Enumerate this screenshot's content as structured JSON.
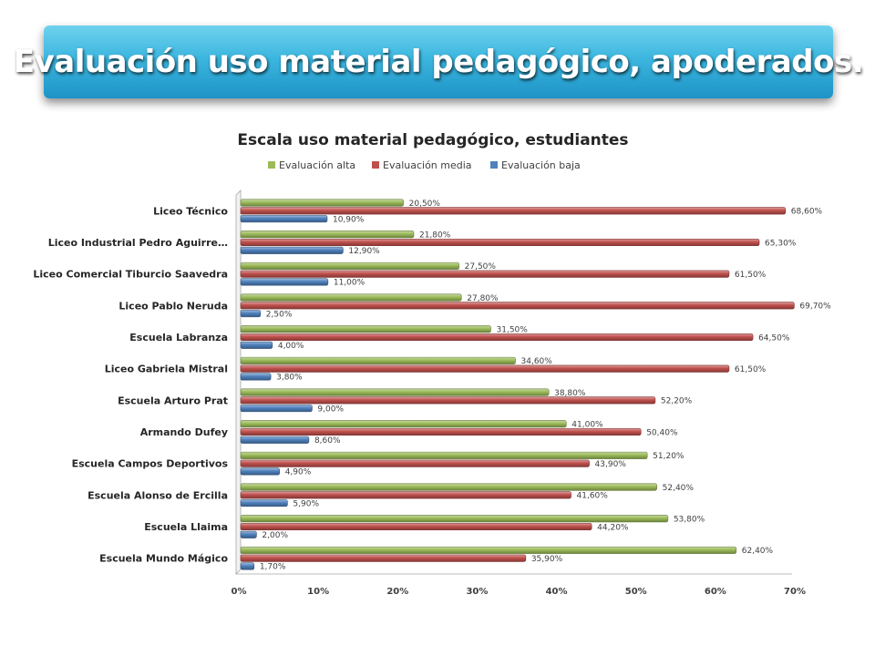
{
  "slide": {
    "title": "Evaluación uso material pedagógico, apoderados."
  },
  "chart_data": {
    "type": "bar",
    "orientation": "horizontal",
    "title": "Escala uso material pedagógico, estudiantes",
    "legend_position": "top",
    "xlim": [
      0,
      70
    ],
    "x_ticks": [
      "0%",
      "10%",
      "20%",
      "30%",
      "40%",
      "50%",
      "60%",
      "70%"
    ],
    "grid": false,
    "categories": [
      "Liceo Técnico",
      "Liceo Industrial Pedro Aguirre…",
      "Liceo Comercial Tiburcio Saavedra",
      "Liceo Pablo Neruda",
      "Escuela Labranza",
      "Liceo Gabriela Mistral",
      "Escuela Arturo Prat",
      "Armando Dufey",
      "Escuela Campos Deportivos",
      "Escuela Alonso de Ercilla",
      "Escuela Llaima",
      "Escuela Mundo Mágico"
    ],
    "series": [
      {
        "name": "Evaluación alta",
        "color": "#9bbb59",
        "values": [
          20.5,
          21.8,
          27.5,
          27.8,
          31.5,
          34.6,
          38.8,
          41.0,
          51.2,
          52.4,
          53.8,
          62.4
        ],
        "labels": [
          "20,50%",
          "21,80%",
          "27,50%",
          "27,80%",
          "31,50%",
          "34,60%",
          "38,80%",
          "41,00%",
          "51,20%",
          "52,40%",
          "53,80%",
          "62,40%"
        ]
      },
      {
        "name": "Evaluación media",
        "color": "#c0504d",
        "values": [
          68.6,
          65.3,
          61.5,
          69.7,
          64.5,
          61.5,
          52.2,
          50.4,
          43.9,
          41.6,
          44.2,
          35.9
        ],
        "labels": [
          "68,60%",
          "65,30%",
          "61,50%",
          "69,70%",
          "64,50%",
          "61,50%",
          "52,20%",
          "50,40%",
          "43,90%",
          "41,60%",
          "44,20%",
          "35,90%"
        ]
      },
      {
        "name": "Evaluación baja",
        "color": "#4f81bd",
        "values": [
          10.9,
          12.9,
          11.0,
          2.5,
          4.0,
          3.8,
          9.0,
          8.6,
          4.9,
          5.9,
          2.0,
          1.7
        ],
        "labels": [
          "10,90%",
          "12,90%",
          "11,00%",
          "2,50%",
          "4,00%",
          "3,80%",
          "9,00%",
          "8,60%",
          "4,90%",
          "5,90%",
          "2,00%",
          "1,70%"
        ]
      }
    ]
  }
}
